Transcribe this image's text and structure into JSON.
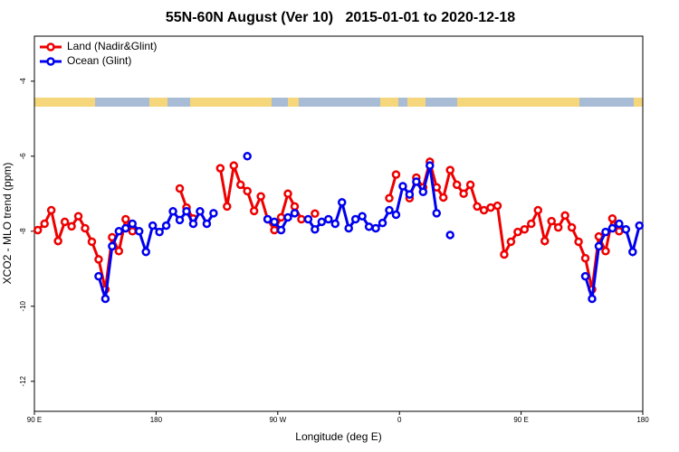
{
  "chart_data": {
    "type": "line",
    "title": "55N-60N August (Ver 10)   2015-01-01 to 2020-12-18",
    "x_label": "Longitude (deg E)",
    "y_label": "XCO2 - MLO trend (ppm)",
    "x": [
      92.5,
      97.5,
      102.5,
      107.5,
      112.5,
      117.5,
      122.5,
      127.5,
      132.5,
      137.5,
      142.5,
      147.5,
      152.5,
      157.5,
      162.5,
      167.5,
      172.5,
      177.5,
      182.5,
      187.5,
      192.5,
      197.5,
      202.5,
      207.5,
      212.5,
      217.5,
      222.5,
      227.5,
      232.5,
      237.5,
      242.5,
      247.5,
      252.5,
      257.5,
      262.5,
      267.5,
      272.5,
      277.5,
      282.5,
      287.5,
      292.5,
      297.5,
      302.5,
      307.5,
      312.5,
      317.5,
      322.5,
      327.5,
      332.5,
      337.5,
      342.5,
      347.5,
      352.5,
      357.5,
      362.5,
      367.5,
      372.5,
      377.5,
      382.5,
      387.5,
      392.5,
      397.5,
      402.5,
      407.5,
      412.5,
      417.5,
      422.5,
      427.5,
      432.5,
      437.5,
      442.5,
      447.5,
      452.5,
      457.5,
      462.5,
      467.5,
      472.5,
      477.5,
      482.5,
      487.5,
      492.5,
      497.5,
      502.5,
      507.5,
      512.5,
      517.5,
      522.5,
      527.5,
      532.5,
      537.5
    ],
    "series": [
      {
        "name": "Land (Nadir&Glint)",
        "color": "#ee0000",
        "values": [
          -7.97,
          -7.8,
          -7.44,
          -8.26,
          -7.75,
          -7.87,
          -7.6,
          -7.92,
          -8.28,
          -8.75,
          -9.55,
          -8.16,
          -8.53,
          -7.68,
          -8.0,
          null,
          null,
          null,
          null,
          null,
          null,
          -6.86,
          -7.37,
          -7.66,
          null,
          null,
          null,
          -6.32,
          -7.34,
          -6.25,
          -6.76,
          -6.93,
          -7.46,
          -7.07,
          -7.68,
          -7.97,
          -7.63,
          -7.0,
          -7.34,
          -7.68,
          null,
          -7.53,
          null,
          null,
          null,
          null,
          null,
          null,
          null,
          null,
          null,
          null,
          -7.12,
          -6.49,
          null,
          -7.12,
          -6.57,
          -6.83,
          -6.15,
          -6.83,
          -7.1,
          -6.37,
          -6.76,
          -7.0,
          -6.76,
          -7.34,
          -7.44,
          -7.37,
          -7.32,
          -8.62,
          -8.28,
          -8.02,
          -7.95,
          -7.8,
          -7.44,
          -8.26,
          -7.73,
          -7.9,
          -7.58,
          -7.9,
          -8.28,
          -8.72,
          -9.55,
          -8.14,
          -8.53,
          -7.66,
          -8.0,
          null,
          null,
          null
        ]
      },
      {
        "name": "Ocean (Glint)",
        "color": "#0000ee",
        "values": [
          null,
          null,
          null,
          null,
          null,
          null,
          null,
          null,
          null,
          -9.2,
          -9.8,
          -8.4,
          -8.0,
          -7.92,
          -7.8,
          -8.0,
          -8.55,
          -7.85,
          -8.02,
          -7.85,
          -7.47,
          -7.7,
          -7.47,
          -7.8,
          -7.47,
          -7.8,
          -7.52,
          null,
          null,
          null,
          null,
          -6.0,
          null,
          null,
          -7.68,
          -7.75,
          -7.97,
          -7.63,
          -7.52,
          null,
          -7.68,
          -7.95,
          -7.75,
          -7.68,
          -7.8,
          -7.23,
          -7.92,
          -7.68,
          -7.6,
          -7.88,
          -7.92,
          -7.78,
          -7.44,
          -7.56,
          -6.8,
          -7.02,
          -6.68,
          -6.95,
          -6.25,
          -7.52,
          null,
          -8.1,
          null,
          null,
          null,
          null,
          null,
          null,
          null,
          null,
          null,
          null,
          null,
          null,
          null,
          null,
          null,
          null,
          null,
          null,
          null,
          -9.2,
          -9.8,
          -8.4,
          -8.02,
          -7.92,
          -7.8,
          -7.95,
          -8.55,
          -7.85
        ]
      }
    ],
    "xlim": [
      90,
      540
    ],
    "xticks": [
      {
        "value": 90,
        "label": "90 E"
      },
      180,
      {
        "value": 270,
        "label": "90 W"
      },
      {
        "value": 360,
        "label": "0"
      },
      {
        "value": 450,
        "label": "90 E"
      },
      {
        "value": 540,
        "label": "180"
      }
    ],
    "ylim": [
      -12.8,
      -2.8
    ],
    "yticks": [
      -12,
      -10,
      -8,
      -6,
      -4
    ],
    "legend": "top-left",
    "grid": false
  }
}
